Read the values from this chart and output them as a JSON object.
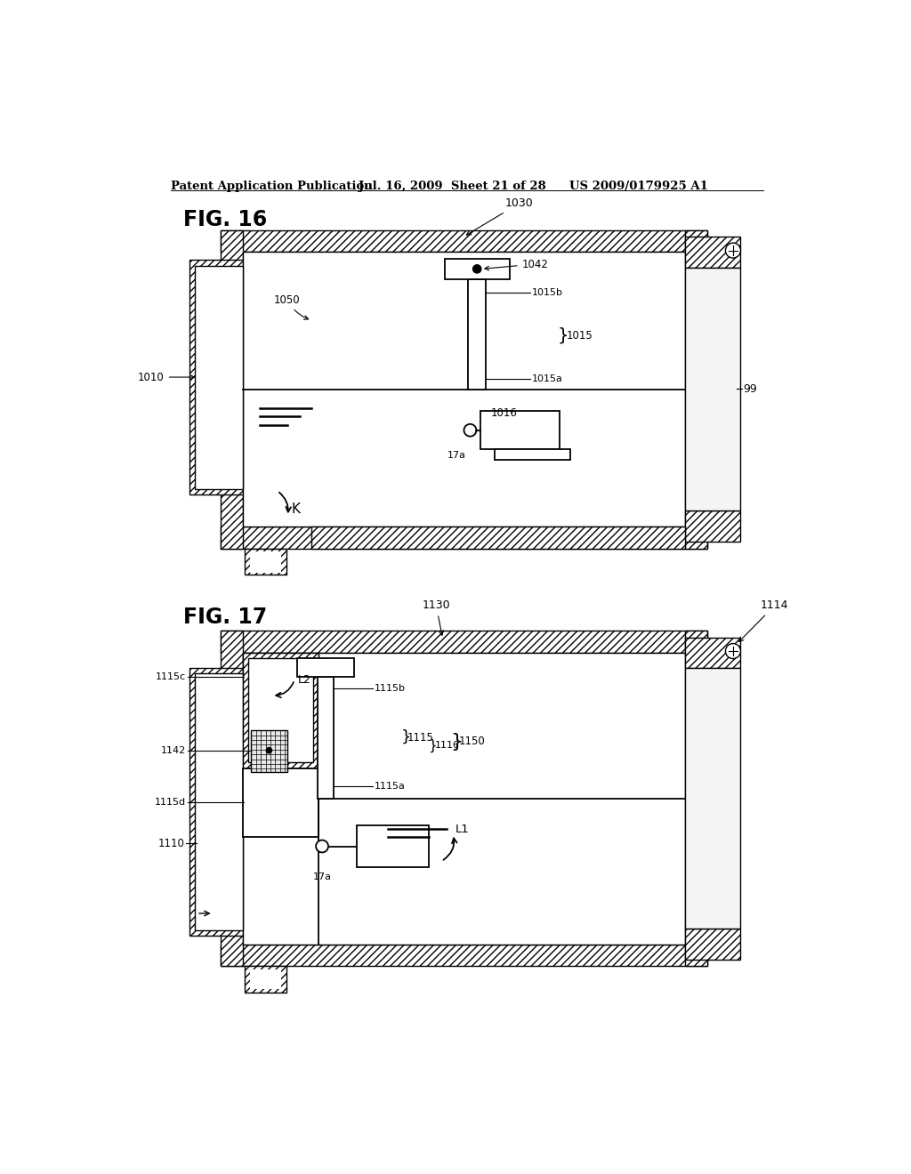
{
  "bg_color": "#ffffff",
  "header_text": "Patent Application Publication",
  "header_date": "Jul. 16, 2009  Sheet 21 of 28",
  "header_patent": "US 2009/0179925 A1",
  "fig16_label": "FIG. 16",
  "fig17_label": "FIG. 17"
}
